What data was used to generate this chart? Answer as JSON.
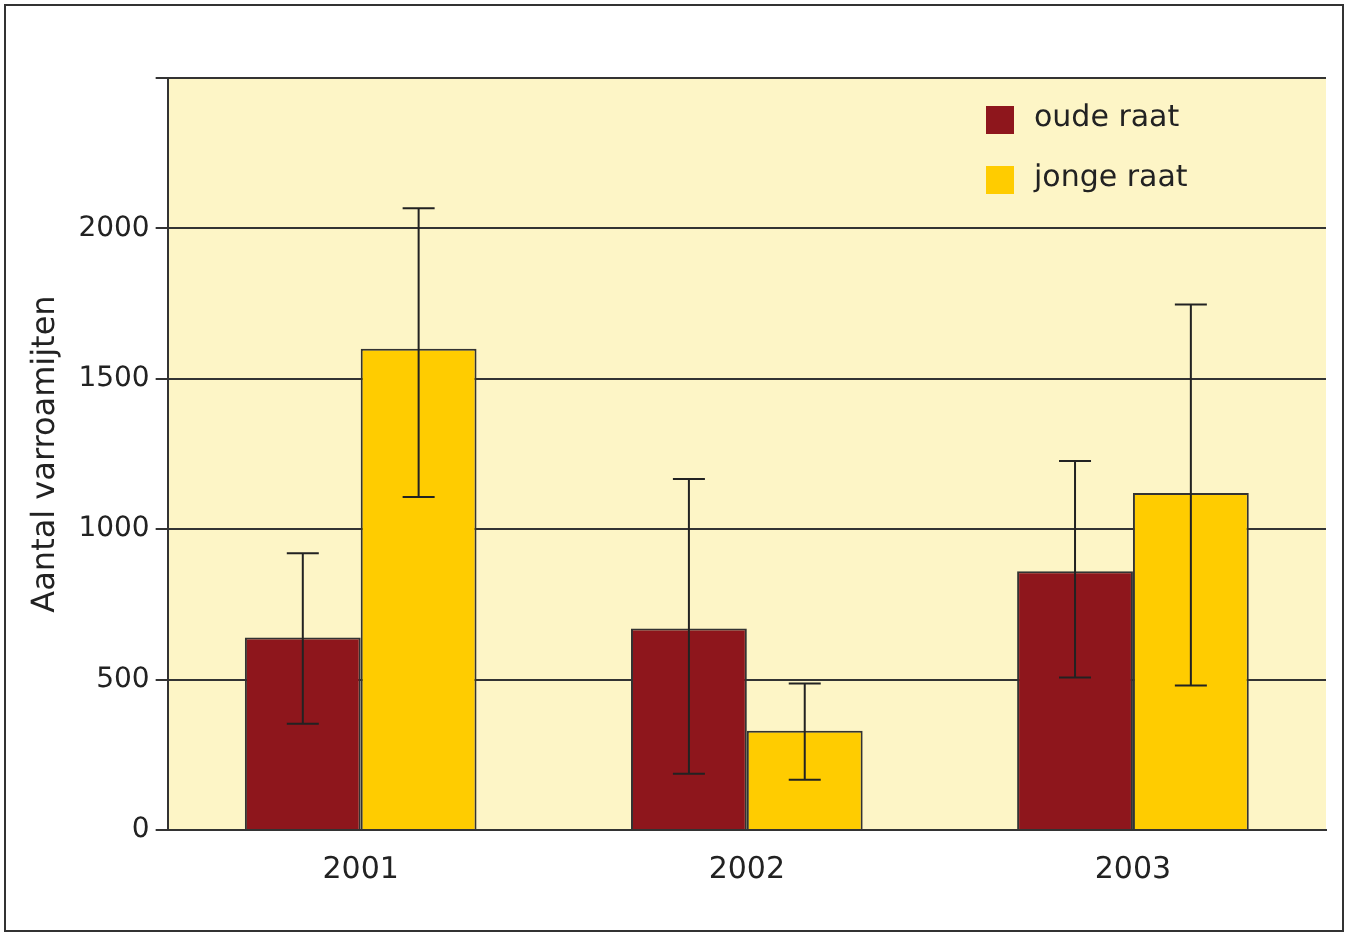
{
  "chart_data": {
    "type": "bar",
    "ylabel": "Aantal varroamijten",
    "categories": [
      "2001",
      "2002",
      "2003"
    ],
    "series": [
      {
        "name": "oude raat",
        "color": "#8e161c",
        "values": [
          640,
          670,
          860
        ],
        "errors": [
          [
            353,
            920
          ],
          [
            187,
            1167
          ],
          [
            507,
            1227
          ]
        ]
      },
      {
        "name": "jonge raat",
        "color": "#ffcc00",
        "values": [
          1600,
          330,
          1120
        ],
        "errors": [
          [
            1107,
            2067
          ],
          [
            167,
            487
          ],
          [
            480,
            1747
          ]
        ]
      }
    ],
    "ylim": [
      0,
      2500
    ],
    "yticks": [
      0,
      500,
      1000,
      1500,
      2000,
      {
        "value": 2500,
        "label": null
      }
    ],
    "grid": "y",
    "legend": "top right"
  }
}
